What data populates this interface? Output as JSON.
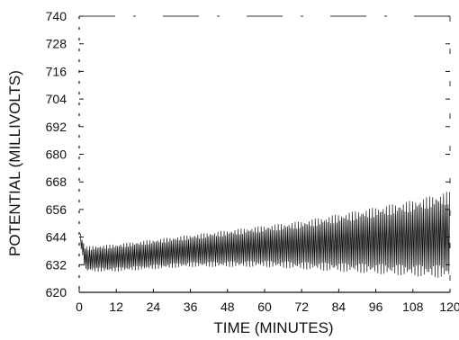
{
  "chart_data": {
    "type": "line",
    "title": "",
    "xlabel": "TIME  (MINUTES)",
    "ylabel": "POTENTIAL  (MILLIVOLTS)",
    "xlim": [
      0,
      120
    ],
    "ylim": [
      620,
      740
    ],
    "xticks": [
      0,
      12,
      24,
      36,
      48,
      60,
      72,
      84,
      96,
      108,
      120
    ],
    "yticks": [
      620,
      632,
      644,
      656,
      668,
      680,
      692,
      704,
      716,
      728,
      740
    ],
    "grid": false,
    "legend": "none",
    "series": [
      {
        "style": "dense oscillation",
        "envelope_upper": [
          {
            "x": 0,
            "y": 648
          },
          {
            "x": 1,
            "y": 643
          },
          {
            "x": 2,
            "y": 640
          },
          {
            "x": 12,
            "y": 641
          },
          {
            "x": 24,
            "y": 643
          },
          {
            "x": 36,
            "y": 645
          },
          {
            "x": 48,
            "y": 647
          },
          {
            "x": 60,
            "y": 649
          },
          {
            "x": 72,
            "y": 651
          },
          {
            "x": 84,
            "y": 654
          },
          {
            "x": 96,
            "y": 657
          },
          {
            "x": 108,
            "y": 660
          },
          {
            "x": 120,
            "y": 664
          }
        ],
        "envelope_lower": [
          {
            "x": 0,
            "y": 644
          },
          {
            "x": 1,
            "y": 636
          },
          {
            "x": 2,
            "y": 629
          },
          {
            "x": 12,
            "y": 629
          },
          {
            "x": 24,
            "y": 630
          },
          {
            "x": 36,
            "y": 631
          },
          {
            "x": 48,
            "y": 631
          },
          {
            "x": 60,
            "y": 631
          },
          {
            "x": 72,
            "y": 630
          },
          {
            "x": 84,
            "y": 629
          },
          {
            "x": 96,
            "y": 628
          },
          {
            "x": 108,
            "y": 627
          },
          {
            "x": 120,
            "y": 626
          }
        ]
      }
    ]
  }
}
